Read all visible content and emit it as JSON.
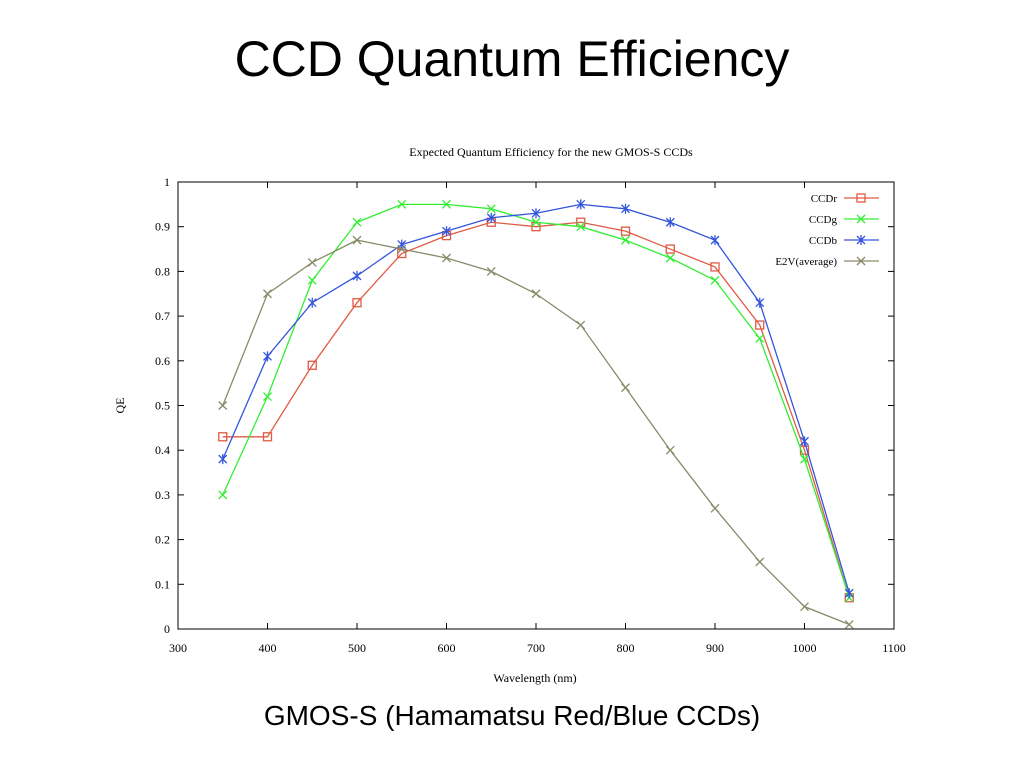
{
  "slide": {
    "title": "CCD Quantum Efficiency",
    "caption": "GMOS-S (Hamamatsu Red/Blue CCDs)"
  },
  "chart_data": {
    "type": "line",
    "title": "Expected Quantum Efficiency for the new GMOS-S CCDs",
    "xlabel": "Wavelength (nm)",
    "ylabel": "QE",
    "xlim": [
      300,
      1100
    ],
    "ylim": [
      0,
      1
    ],
    "xticks": [
      "300",
      "400",
      "500",
      "600",
      "700",
      "800",
      "900",
      "1000",
      "1100"
    ],
    "yticks": [
      "0",
      "0.1",
      "0.2",
      "0.3",
      "0.4",
      "0.5",
      "0.6",
      "0.7",
      "0.8",
      "0.9",
      "1"
    ],
    "grid": false,
    "legend_position": "top-right",
    "series": [
      {
        "name": "CCDr",
        "color": "#e05a45",
        "marker": "square",
        "x": [
          350,
          400,
          450,
          500,
          550,
          600,
          650,
          700,
          750,
          800,
          850,
          900,
          950,
          1000,
          1050
        ],
        "y": [
          0.43,
          0.43,
          0.59,
          0.73,
          0.84,
          0.88,
          0.91,
          0.9,
          0.91,
          0.89,
          0.85,
          0.81,
          0.68,
          0.4,
          0.07
        ]
      },
      {
        "name": "CCDg",
        "color": "#33ee33",
        "marker": "x",
        "x": [
          350,
          400,
          450,
          500,
          550,
          600,
          650,
          700,
          750,
          800,
          850,
          900,
          950,
          1000,
          1050
        ],
        "y": [
          0.3,
          0.52,
          0.78,
          0.91,
          0.95,
          0.95,
          0.94,
          0.91,
          0.9,
          0.87,
          0.83,
          0.78,
          0.65,
          0.38,
          0.07
        ]
      },
      {
        "name": "CCDb",
        "color": "#3355dd",
        "marker": "star",
        "x": [
          350,
          400,
          450,
          500,
          550,
          600,
          650,
          700,
          750,
          800,
          850,
          900,
          950,
          1000,
          1050
        ],
        "y": [
          0.38,
          0.61,
          0.73,
          0.79,
          0.86,
          0.89,
          0.92,
          0.93,
          0.95,
          0.94,
          0.91,
          0.87,
          0.73,
          0.42,
          0.08
        ]
      },
      {
        "name": "E2V(average)",
        "color": "#8a8a6a",
        "marker": "x",
        "x": [
          350,
          400,
          450,
          500,
          550,
          600,
          650,
          700,
          750,
          800,
          850,
          900,
          950,
          1000,
          1050
        ],
        "y": [
          0.5,
          0.75,
          0.82,
          0.87,
          0.85,
          0.83,
          0.8,
          0.75,
          0.68,
          0.54,
          0.4,
          0.27,
          0.15,
          0.05,
          0.01
        ]
      }
    ]
  }
}
